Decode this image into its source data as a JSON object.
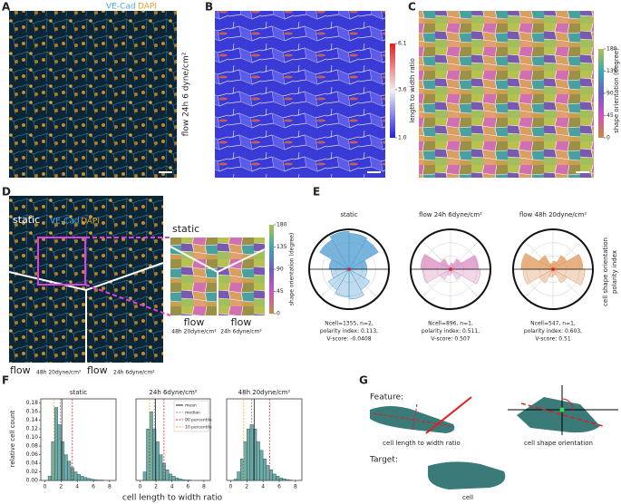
{
  "panel_labels": [
    "A",
    "B",
    "C",
    "D",
    "E",
    "F",
    "G"
  ],
  "panel_a": {
    "ve_cad": "VE-Cad",
    "dapi": "DAPI",
    "side_label": "flow 24h 6 dyne/cm²"
  },
  "panel_b": {
    "colorbar": {
      "label": "length to width ratio",
      "lim": [
        1,
        6.1
      ],
      "ticks": [
        {
          "value": 1,
          "label": "1.0"
        },
        3.6,
        6.1
      ]
    }
  },
  "panel_c": {
    "colorbar": {
      "label": "shape orientation (degree)",
      "lim": [
        0,
        180
      ],
      "ticks": [
        0,
        45,
        90,
        135,
        180
      ]
    }
  },
  "panel_d": {
    "static": "static",
    "ve_cad": "VE-Cad",
    "dapi": "DAPI",
    "flow_left": "flow",
    "flow_left_sub": "48h 20dyne/cm²",
    "flow_right": "flow",
    "flow_right_sub": "24h 6dyne/cm²",
    "inset_static": "static",
    "inset_flow_left": "flow",
    "inset_flow_left_sub": "48h 20dyne/cm²",
    "inset_flow_right": "flow",
    "inset_flow_right_sub": "24h 6dyne/cm²",
    "colorbar": {
      "label": "shape orientation (degree)",
      "lim": [
        0,
        180
      ],
      "ticks": [
        0,
        45,
        90,
        135,
        180
      ]
    }
  },
  "panel_e": {
    "side_label_1": "cell shape orientation",
    "side_label_2": "polarity index"
  },
  "panel_f": {
    "x_label": "cell length to width ratio",
    "y_label": "relative cell count",
    "legend": [
      {
        "name": "mean",
        "color": "#222222",
        "style": "solid"
      },
      {
        "name": "median",
        "color": "#888888",
        "style": "dashed"
      },
      {
        "name": "90 percentile",
        "color": "#d62728",
        "style": "dashed"
      },
      {
        "name": "10 percentile",
        "color": "#ff9f1c",
        "style": "dashed"
      }
    ]
  },
  "panel_g": {
    "feature": "Feature:",
    "ratio_label": "cell length to width ratio",
    "orientation_label": "cell shape orientation",
    "target": "Target:",
    "cell_label": "cell"
  },
  "chart_data": [
    {
      "type": "histogram",
      "title": "static",
      "color": "#3f8f8c",
      "bins": [
        0,
        0.4,
        0.8,
        1.2,
        1.6,
        2,
        2.4,
        2.8,
        3.2,
        3.6,
        4,
        4.4,
        4.8,
        5.2,
        5.6,
        6,
        6.4,
        6.8,
        7.2,
        7.6,
        8
      ],
      "counts": [
        0,
        0.01,
        0.09,
        0.17,
        0.13,
        0.09,
        0.06,
        0.045,
        0.03,
        0.02,
        0.014,
        0.01,
        0.007,
        0.005,
        0.003,
        0.002,
        0.001,
        0.001,
        0,
        0
      ],
      "stat_lines": [
        2.1,
        1.9,
        3.4,
        1.1
      ],
      "xlim": [
        -0.5,
        8.8
      ],
      "ylim": [
        0,
        0.19
      ],
      "xticks": [
        0,
        2,
        4,
        6,
        8
      ],
      "yticks": [
        {
          "value": 0,
          "label": "0.00"
        },
        {
          "value": 0.02,
          "label": "0.02"
        },
        {
          "value": 0.04,
          "label": "0.04"
        },
        {
          "value": 0.06,
          "label": "0.06"
        },
        {
          "value": 0.08,
          "label": "0.08"
        },
        {
          "value": 0.1,
          "label": "0.10"
        },
        {
          "value": 0.12,
          "label": "0.12"
        },
        {
          "value": 0.14,
          "label": "0.14"
        },
        {
          "value": 0.16,
          "label": "0.16"
        },
        {
          "value": 0.18,
          "label": "0.18"
        }
      ]
    },
    {
      "type": "histogram",
      "title": "24h 6dyne/cm²",
      "color": "#3f8f8c",
      "bins": [
        0,
        0.4,
        0.8,
        1.2,
        1.6,
        2,
        2.4,
        2.8,
        3.2,
        3.6,
        4,
        4.4,
        4.8,
        5.2,
        5.6,
        6,
        6.4,
        6.8,
        7.2,
        7.6,
        8
      ],
      "counts": [
        0,
        0.02,
        0.12,
        0.16,
        0.12,
        0.09,
        0.06,
        0.04,
        0.025,
        0.015,
        0.01,
        0.006,
        0.004,
        0.002,
        0.001,
        0.001,
        0,
        0,
        0,
        0
      ],
      "stat_lines": [
        1.95,
        1.8,
        3.0,
        1.2
      ],
      "xlim": [
        -0.5,
        8.8
      ],
      "ylim": [
        0,
        0.19
      ],
      "xticks": [
        0,
        2,
        4,
        6,
        8
      ]
    },
    {
      "type": "histogram",
      "title": "48h 20dyne/cm²",
      "color": "#3f8f8c",
      "bins": [
        0,
        0.4,
        0.8,
        1.2,
        1.6,
        2,
        2.4,
        2.8,
        3.2,
        3.6,
        4,
        4.4,
        4.8,
        5.2,
        5.6,
        6,
        6.4,
        6.8,
        7.2,
        7.6,
        8
      ],
      "counts": [
        0,
        0.003,
        0.02,
        0.05,
        0.09,
        0.12,
        0.13,
        0.12,
        0.09,
        0.07,
        0.05,
        0.035,
        0.025,
        0.015,
        0.01,
        0.006,
        0.004,
        0.002,
        0.001,
        0
      ],
      "stat_lines": [
        2.9,
        2.6,
        4.8,
        1.6
      ],
      "xlim": [
        -0.5,
        8.8
      ],
      "ylim": [
        0,
        0.19
      ],
      "xticks": [
        0,
        2,
        4,
        6,
        8
      ]
    },
    {
      "type": "rose",
      "title": "static",
      "color": "#4c9bd0",
      "rlim": [
        0,
        1
      ],
      "values": [
        0.45,
        0.85,
        0.9,
        0.95,
        0.85,
        0.5,
        0.45,
        0.6,
        0.7,
        0.75,
        0.6,
        0.45
      ],
      "stats": [
        "Ncell=1355, n=2,",
        "polarity index: 0.113,",
        "V-score: -0.0408"
      ]
    },
    {
      "type": "rose",
      "title": "flow 24h 6dyne/cm²",
      "color": "#d98bbf",
      "rlim": [
        0,
        1
      ],
      "values": [
        0.7,
        0.3,
        0.15,
        0.1,
        0.3,
        0.75,
        0.7,
        0.3,
        0.15,
        0.1,
        0.3,
        0.75
      ],
      "stats": [
        "Ncell=896, n=1,",
        "polarity index: 0.511,",
        "V-score: 0.507"
      ]
    },
    {
      "type": "rose",
      "title": "flow 48h 20dyne/cm²",
      "color": "#e0955a",
      "rlim": [
        0,
        1
      ],
      "values": [
        0.75,
        0.4,
        0.2,
        0.15,
        0.4,
        0.8,
        0.75,
        0.4,
        0.2,
        0.15,
        0.4,
        0.8
      ],
      "stats": [
        "Ncell=547, n=1,",
        "polarity index: 0.603,",
        "V-score: 0.51"
      ]
    }
  ]
}
